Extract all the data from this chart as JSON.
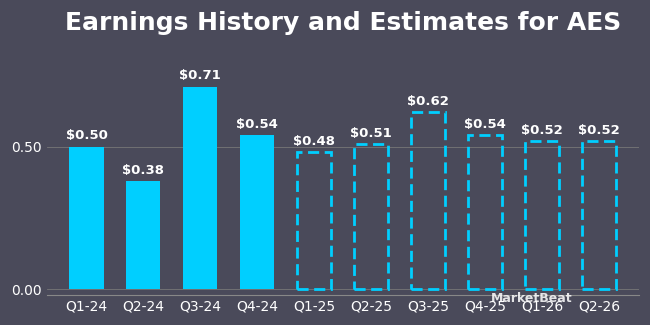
{
  "title": "Earnings History and Estimates for AES",
  "categories": [
    "Q1-24",
    "Q2-24",
    "Q3-24",
    "Q4-24",
    "Q1-25",
    "Q2-25",
    "Q3-25",
    "Q4-25",
    "Q1-26",
    "Q2-26"
  ],
  "values": [
    0.5,
    0.38,
    0.71,
    0.54,
    0.48,
    0.51,
    0.62,
    0.54,
    0.52,
    0.52
  ],
  "labels": [
    "$0.50",
    "$0.38",
    "$0.71",
    "$0.54",
    "$0.48",
    "$0.51",
    "$0.62",
    "$0.54",
    "$0.52",
    "$0.52"
  ],
  "is_estimate": [
    false,
    false,
    false,
    false,
    true,
    true,
    true,
    true,
    true,
    true
  ],
  "bar_color_solid": "#00cfff",
  "bar_color_estimate": "#00cfff",
  "background_color": "#4a4a5a",
  "text_color": "#ffffff",
  "yticks": [
    0.0,
    0.5
  ],
  "ylim": [
    -0.02,
    0.85
  ],
  "title_fontsize": 18,
  "label_fontsize": 9.5,
  "tick_fontsize": 10,
  "watermark": "MarketBeat"
}
